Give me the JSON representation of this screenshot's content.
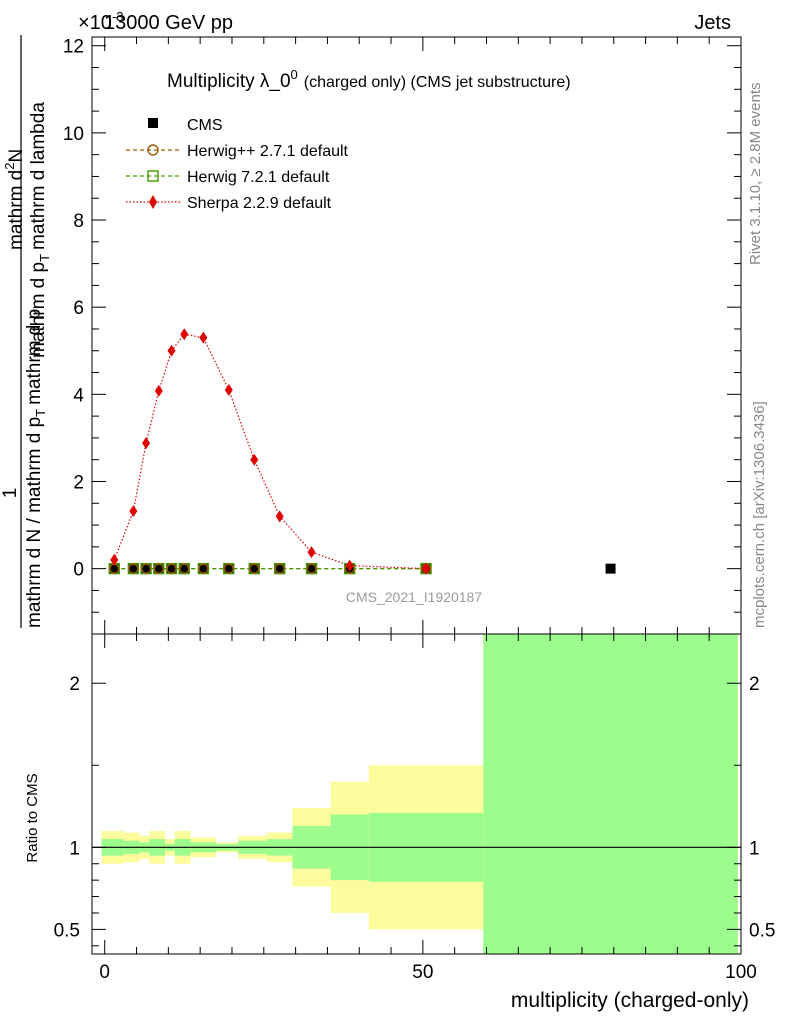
{
  "header": {
    "energy_label": "13000 GeV pp",
    "category_label": "Jets",
    "exponent_label": "×10",
    "exponent_power": "-3"
  },
  "side_labels": {
    "rivet": "Rivet 3.1.10, ≥ 2.8M events",
    "mcplots": "mcplots.cern.ch [arXiv:1306.3436]"
  },
  "watermark": "CMS_2021_I1920187",
  "chart_data": [
    {
      "type": "line",
      "title": "Multiplicity λ_0",
      "title_sup": "0",
      "title_suffix": "(charged only) (CMS jet substructure)",
      "ylabel": {
        "numerator": "1",
        "denominator": "mathrm d N / mathrm d p",
        "den_sub": "T",
        "den_rest": "mathrm d p",
        "right_num": "mathrm d",
        "right_sup": "2",
        "right_N": "N",
        "right_den": "mathrm d p",
        "right_den_sub": "T",
        "right_den_rest": "mathrm d lambda"
      },
      "xlim": [
        -2,
        100
      ],
      "ylim": [
        -1.5,
        12.2
      ],
      "y_ticks": [
        0,
        2,
        4,
        6,
        8,
        10,
        12
      ],
      "y_tick_labels": [
        "0",
        "2",
        "4",
        "6",
        "8",
        "10",
        "12"
      ],
      "legend": [
        {
          "name": "CMS",
          "marker": "square-filled",
          "color": "#000000"
        },
        {
          "name": "Herwig++ 2.7.1 default",
          "marker": "circle-open",
          "color": "#a05a00",
          "dash": "dashed"
        },
        {
          "name": "Herwig 7.2.1 default",
          "marker": "square-open",
          "color": "#449b00",
          "dash": "dashed"
        },
        {
          "name": "Sherpa 2.2.9 default",
          "marker": "diamond-filled",
          "color": "#e00000",
          "dash": "dotted"
        }
      ],
      "series": [
        {
          "name": "Sherpa 2.2.9 default",
          "x": [
            1.5,
            4.5,
            6.5,
            8.5,
            10.5,
            12.5,
            15.5,
            19.5,
            23.5,
            27.5,
            32.5,
            38.5,
            50.5
          ],
          "y": [
            0.2,
            1.32,
            2.88,
            4.08,
            5.0,
            5.38,
            5.3,
            4.1,
            2.5,
            1.2,
            0.38,
            0.07,
            0.0
          ]
        },
        {
          "name": "Herwig++ 2.7.1 default",
          "x": [
            1.5,
            4.5,
            6.5,
            8.5,
            10.5,
            12.5,
            15.5,
            19.5,
            23.5,
            27.5,
            32.5,
            38.5,
            50.5
          ],
          "y": [
            0,
            0,
            0,
            0,
            0,
            0,
            0,
            0,
            0,
            0,
            0,
            0,
            0
          ]
        },
        {
          "name": "Herwig 7.2.1 default",
          "x": [
            1.5,
            4.5,
            6.5,
            8.5,
            10.5,
            12.5,
            15.5,
            19.5,
            23.5,
            27.5,
            32.5,
            38.5,
            50.5
          ],
          "y": [
            0,
            0,
            0,
            0,
            0,
            0,
            0,
            0,
            0,
            0,
            0,
            0,
            0
          ]
        },
        {
          "name": "CMS",
          "x": [
            1.5,
            4.5,
            6.5,
            8.5,
            10.5,
            12.5,
            15.5,
            19.5,
            23.5,
            27.5,
            32.5,
            38.5,
            50.5,
            79.5
          ],
          "y": [
            0,
            0,
            0,
            0,
            0,
            0,
            0,
            0,
            0,
            0,
            0,
            0,
            0,
            0
          ]
        }
      ]
    },
    {
      "type": "area",
      "ylabel": "Ratio to CMS",
      "xlabel": "multiplicity (charged-only)",
      "xlim": [
        -2,
        100
      ],
      "ylim": [
        0.35,
        2.3
      ],
      "x_ticks": [
        0,
        50,
        100
      ],
      "x_tick_labels": [
        "0",
        "50",
        "100"
      ],
      "y_ticks": [
        0.5,
        1,
        2
      ],
      "y_tick_labels": [
        "0.5",
        "1",
        "2"
      ],
      "reference_line": 1,
      "bands": [
        {
          "x0": -0.5,
          "x1": 3,
          "inner": [
            0.95,
            1.05
          ],
          "outer": [
            0.9,
            1.1
          ]
        },
        {
          "x0": 3,
          "x1": 5.5,
          "inner": [
            0.96,
            1.04
          ],
          "outer": [
            0.91,
            1.09
          ]
        },
        {
          "x0": 5.5,
          "x1": 7,
          "inner": [
            0.97,
            1.03
          ],
          "outer": [
            0.93,
            1.07
          ]
        },
        {
          "x0": 7,
          "x1": 9.5,
          "inner": [
            0.95,
            1.05
          ],
          "outer": [
            0.9,
            1.1
          ]
        },
        {
          "x0": 9.5,
          "x1": 11,
          "inner": [
            0.98,
            1.02
          ],
          "outer": [
            0.95,
            1.05
          ]
        },
        {
          "x0": 11,
          "x1": 13.5,
          "inner": [
            0.95,
            1.05
          ],
          "outer": [
            0.9,
            1.1
          ]
        },
        {
          "x0": 13.5,
          "x1": 17.5,
          "inner": [
            0.97,
            1.03
          ],
          "outer": [
            0.94,
            1.06
          ]
        },
        {
          "x0": 17.5,
          "x1": 21,
          "inner": [
            0.98,
            1.02
          ],
          "outer": [
            0.97,
            1.03
          ]
        },
        {
          "x0": 21,
          "x1": 25.5,
          "inner": [
            0.96,
            1.04
          ],
          "outer": [
            0.93,
            1.07
          ]
        },
        {
          "x0": 25.5,
          "x1": 29.5,
          "inner": [
            0.95,
            1.05
          ],
          "outer": [
            0.91,
            1.09
          ]
        },
        {
          "x0": 29.5,
          "x1": 35.5,
          "inner": [
            0.87,
            1.13
          ],
          "outer": [
            0.76,
            1.24
          ]
        },
        {
          "x0": 35.5,
          "x1": 41.5,
          "inner": [
            0.8,
            1.2
          ],
          "outer": [
            0.6,
            1.4
          ]
        },
        {
          "x0": 41.5,
          "x1": 59.5,
          "inner": [
            0.79,
            1.21
          ],
          "outer": [
            0.5,
            1.5
          ]
        },
        {
          "x0": 59.5,
          "x1": 99.5,
          "inner": [
            0.0,
            5.0
          ],
          "outer": [
            0.0,
            5.0
          ]
        }
      ]
    }
  ],
  "colors": {
    "inner_band": "#9cfc8c",
    "outer_band": "#fcfc9c",
    "sherpa": "#e00000",
    "herwigpp": "#a05a00",
    "herwig7": "#449b00",
    "cms": "#000000"
  }
}
